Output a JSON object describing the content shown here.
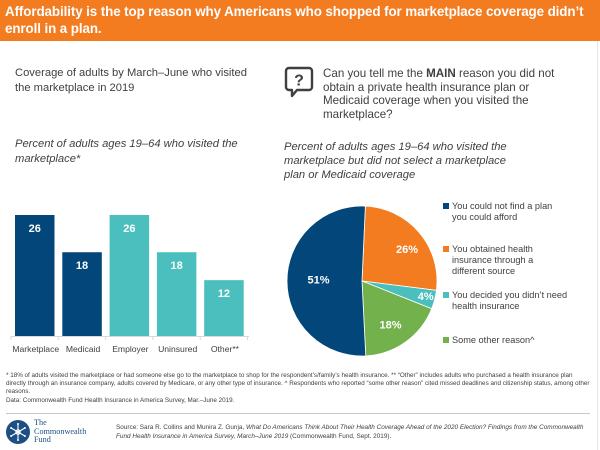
{
  "header": {
    "title": "Affordability is the top reason why Americans who shopped for marketplace coverage didn’t enroll in a plan."
  },
  "colors": {
    "header_bg": "#f37b20",
    "navy": "#03477a",
    "teal": "#4bbfbd",
    "orange": "#f37b20",
    "green": "#72b14b",
    "logo_blue": "#1d4f83"
  },
  "left_panel": {
    "heading": "Coverage of adults by March–June who visited the marketplace in 2019",
    "subheading": "Percent of adults ages 19–64 who visited the marketplace*"
  },
  "right_panel": {
    "question_icon": "question-speech-bubble-icon",
    "question_prefix": "Can you tell me the ",
    "question_bold": "MAIN",
    "question_suffix": " reason you did not obtain a private health insurance plan or Medicaid coverage when you visited the marketplace?",
    "subheading": "Percent of adults ages 19–64 who visited the marketplace but did not select a marketplace plan or Medicaid coverage"
  },
  "chart_data": [
    {
      "type": "bar",
      "title": "Percent of adults ages 19–64 who visited the marketplace*",
      "categories": [
        "Marketplace",
        "Medicaid",
        "Employer",
        "Uninsured",
        "Other**"
      ],
      "values": [
        26,
        18,
        26,
        18,
        12
      ],
      "data_labels": [
        "26",
        "18",
        "26",
        "18",
        "12"
      ],
      "bar_colors": [
        "#03477a",
        "#03477a",
        "#4bbfbd",
        "#4bbfbd",
        "#4bbfbd"
      ],
      "xlabel": "",
      "ylabel": "",
      "ylim": [
        0,
        26
      ],
      "grid": false,
      "legend": "none"
    },
    {
      "type": "pie",
      "title": "Percent of adults ages 19–64 who visited the marketplace but did not select a marketplace plan or Medicaid coverage",
      "start": "top, clockwise",
      "slices": [
        {
          "label": "You obtained health insurance through a different source",
          "value": 26,
          "data_label": "26%",
          "color": "#f37b20"
        },
        {
          "label": "You decided you didn’t need health insurance",
          "value": 4,
          "data_label": "4%",
          "color": "#4bbfbd"
        },
        {
          "label": "Some other reason^",
          "value": 18,
          "data_label": "18%",
          "color": "#72b14b"
        },
        {
          "label": "You could not find a plan you could afford",
          "value": 51,
          "data_label": "51%",
          "color": "#03477a"
        }
      ],
      "legend": "right",
      "legend_entries": [
        {
          "label": "You could not find a plan you could afford",
          "color": "#03477a"
        },
        {
          "label": "You obtained health insurance through a different source",
          "color": "#f37b20"
        },
        {
          "label": "You decided you didn’t need health insurance",
          "color": "#4bbfbd"
        },
        {
          "label": "Some other reason^",
          "color": "#72b14b"
        }
      ]
    }
  ],
  "footnote": {
    "text": "* 18% of adults visited the marketplace or had someone else go to the marketplace to shop for the respondent’s/family’s health insurance. ** “Other” includes adults who purchased a health insurance plan directly through an insurance company, adults covered by Medicare, or any other type of insurance. ^ Respondents who reported “some other reason” cited missed deadlines and citizenship status, among other reasons.",
    "data_line": "Data: Commonwealth Fund Health Insurance in America Survey, Mar.–June 2019."
  },
  "footer": {
    "logo_line1": "The",
    "logo_line2": "Commonwealth",
    "logo_line3": "Fund",
    "source_prefix": "Source: Sara R. Collins and Munira Z. Gunja, ",
    "source_title": "What Do Americans Think About Their Health Coverage Ahead of the 2020 Election? Findings from the Commonwealth Fund Health Insurance in America Survey, March–June 2019",
    "source_suffix": " (Commonwealth Fund, Sept. 2019)."
  }
}
